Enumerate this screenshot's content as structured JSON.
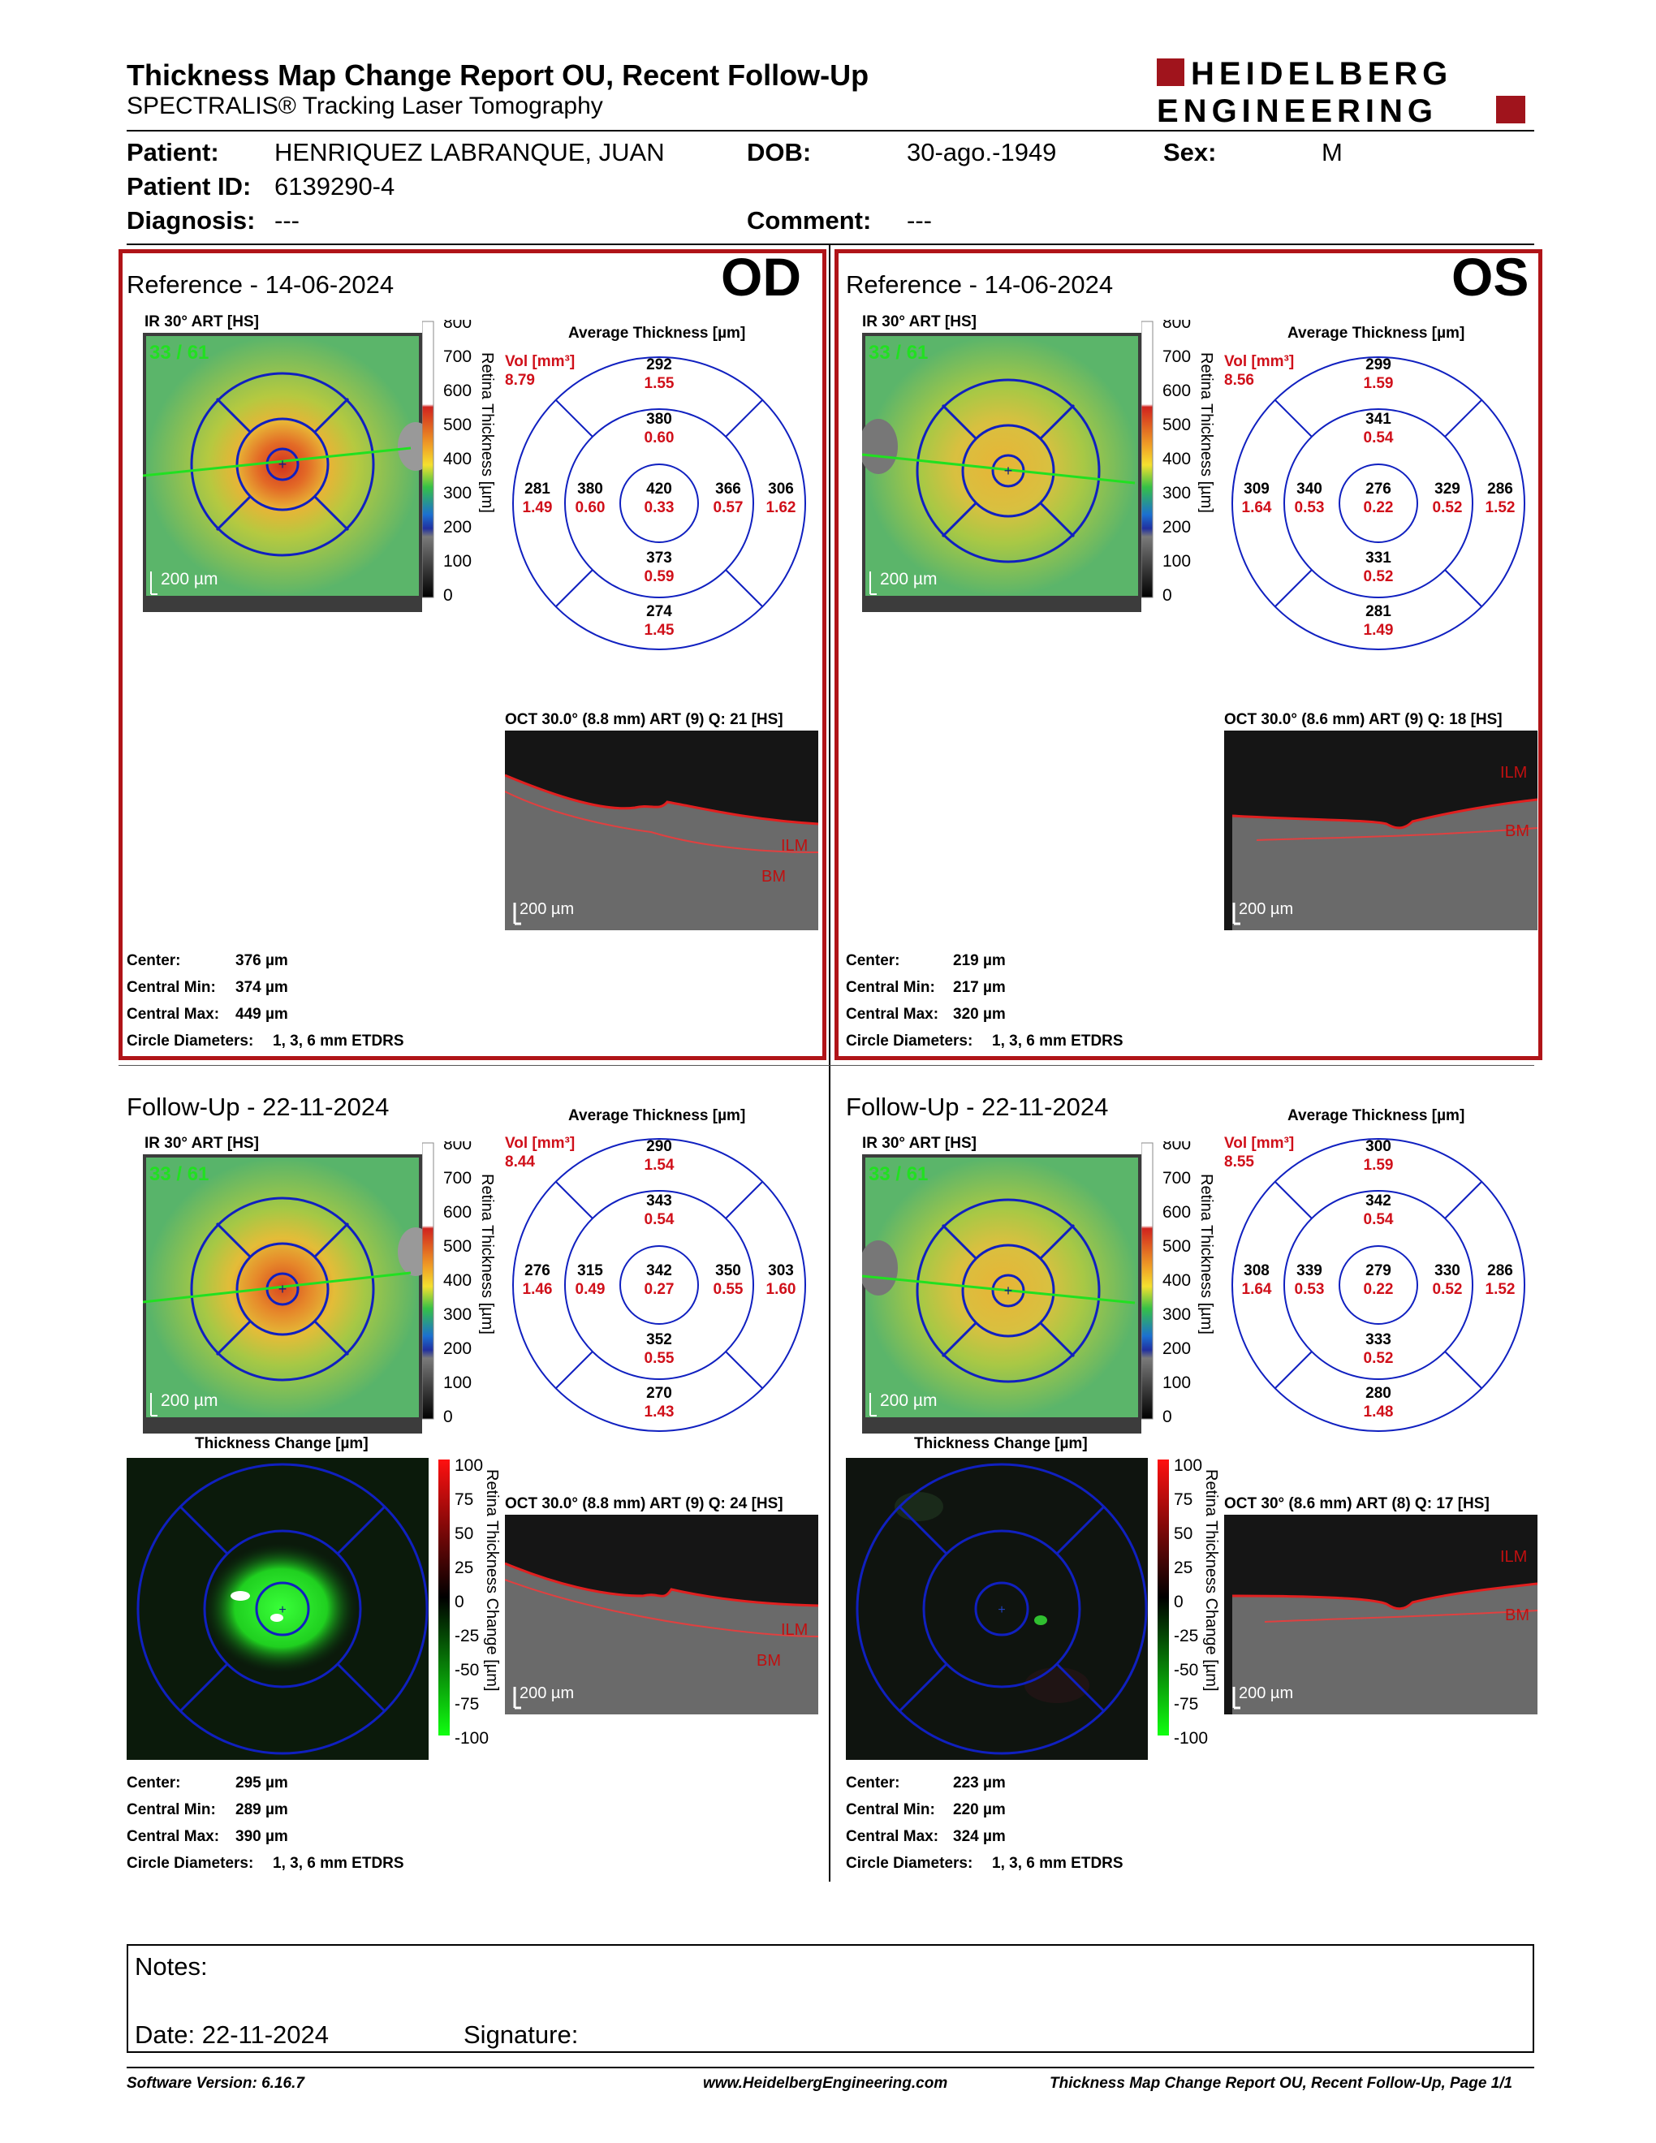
{
  "report": {
    "title": "Thickness Map Change Report OU, Recent Follow-Up",
    "subtitle": "SPECTRALIS® Tracking Laser Tomography",
    "logo_line1": "HEIDELBERG",
    "logo_line2": "ENGINEERING"
  },
  "patient": {
    "patient_label": "Patient:",
    "patient_value": "HENRIQUEZ LABRANQUE, JUAN",
    "dob_label": "DOB:",
    "dob_value": "30-ago.-1949",
    "sex_label": "Sex:",
    "sex_value": "M",
    "id_label": "Patient ID:",
    "id_value": "6139290-4",
    "diagnosis_label": "Diagnosis:",
    "diagnosis_value": "---",
    "comment_label": "Comment:",
    "comment_value": "---"
  },
  "labels": {
    "ir_title": "IR 30° ART [HS]",
    "avg_title": "Average Thickness [µm]",
    "vol_label": "Vol [mm³]",
    "scale_bar": "200 µm",
    "retina_thickness_axis": "Retina Thickness [µm]",
    "thickness_change_title": "Thickness Change [µm]",
    "thickness_change_axis": "Retina Thickness Change [µm]",
    "center_label": "Center:",
    "cmin_label": "Central Min:",
    "cmax_label": "Central Max:",
    "circle_label": "Circle Diameters:",
    "circle_value": "1, 3, 6 mm ETDRS",
    "ilm": "ILM",
    "bm": "BM",
    "colorbar_ticks": [
      "800",
      "700",
      "600",
      "500",
      "400",
      "300",
      "200",
      "100",
      "0"
    ],
    "change_ticks": [
      "100",
      "75",
      "50",
      "25",
      "0",
      "-25",
      "-50",
      "-75",
      "-100"
    ]
  },
  "panels": {
    "od_ref": {
      "eye": "OD",
      "title": "Reference - 14-06-2024",
      "counter": "33 / 61",
      "vol": "8.79",
      "sectors": {
        "top_outer": [
          "292",
          "1.55"
        ],
        "top_inner": [
          "380",
          "0.60"
        ],
        "left_outer": [
          "281",
          "1.49"
        ],
        "left_inner": [
          "380",
          "0.60"
        ],
        "center": [
          "420",
          "0.33"
        ],
        "right_inner": [
          "366",
          "0.57"
        ],
        "right_outer": [
          "306",
          "1.62"
        ],
        "bottom_inner": [
          "373",
          "0.59"
        ],
        "bottom_outer": [
          "274",
          "1.45"
        ]
      },
      "oct_title": "OCT 30.0° (8.8 mm) ART (9) Q: 21 [HS]",
      "center": "376 µm",
      "cmin": "374 µm",
      "cmax": "449 µm"
    },
    "os_ref": {
      "eye": "OS",
      "title": "Reference - 14-06-2024",
      "counter": "33 / 61",
      "vol": "8.56",
      "sectors": {
        "top_outer": [
          "299",
          "1.59"
        ],
        "top_inner": [
          "341",
          "0.54"
        ],
        "left_outer": [
          "309",
          "1.64"
        ],
        "left_inner": [
          "340",
          "0.53"
        ],
        "center": [
          "276",
          "0.22"
        ],
        "right_inner": [
          "329",
          "0.52"
        ],
        "right_outer": [
          "286",
          "1.52"
        ],
        "bottom_inner": [
          "331",
          "0.52"
        ],
        "bottom_outer": [
          "281",
          "1.49"
        ]
      },
      "oct_title": "OCT 30.0° (8.6 mm) ART (9) Q: 18 [HS]",
      "center": "219 µm",
      "cmin": "217 µm",
      "cmax": "320 µm"
    },
    "od_fu": {
      "title": "Follow-Up - 22-11-2024",
      "counter": "33 / 61",
      "vol": "8.44",
      "sectors": {
        "top_outer": [
          "290",
          "1.54"
        ],
        "top_inner": [
          "343",
          "0.54"
        ],
        "left_outer": [
          "276",
          "1.46"
        ],
        "left_inner": [
          "315",
          "0.49"
        ],
        "center": [
          "342",
          "0.27"
        ],
        "right_inner": [
          "350",
          "0.55"
        ],
        "right_outer": [
          "303",
          "1.60"
        ],
        "bottom_inner": [
          "352",
          "0.55"
        ],
        "bottom_outer": [
          "270",
          "1.43"
        ]
      },
      "oct_title": "OCT 30.0° (8.8 mm) ART (9) Q: 24 [HS]",
      "center": "295 µm",
      "cmin": "289 µm",
      "cmax": "390 µm"
    },
    "os_fu": {
      "title": "Follow-Up - 22-11-2024",
      "counter": "33 / 61",
      "vol": "8.55",
      "sectors": {
        "top_outer": [
          "300",
          "1.59"
        ],
        "top_inner": [
          "342",
          "0.54"
        ],
        "left_outer": [
          "308",
          "1.64"
        ],
        "left_inner": [
          "339",
          "0.53"
        ],
        "center": [
          "279",
          "0.22"
        ],
        "right_inner": [
          "330",
          "0.52"
        ],
        "right_outer": [
          "286",
          "1.52"
        ],
        "bottom_inner": [
          "333",
          "0.52"
        ],
        "bottom_outer": [
          "280",
          "1.48"
        ]
      },
      "oct_title": "OCT 30° (8.6 mm) ART (8) Q: 17 [HS]",
      "center": "223 µm",
      "cmin": "220 µm",
      "cmax": "324 µm"
    }
  },
  "notes": {
    "notes_label": "Notes:",
    "date_label": "Date: 22-11-2024",
    "signature_label": "Signature:"
  },
  "footer": {
    "software": "Software Version: 6.16.7",
    "website": "www.HeidelbergEngineering.com",
    "page": "Thickness Map Change Report OU, Recent Follow-Up, Page 1/1"
  }
}
